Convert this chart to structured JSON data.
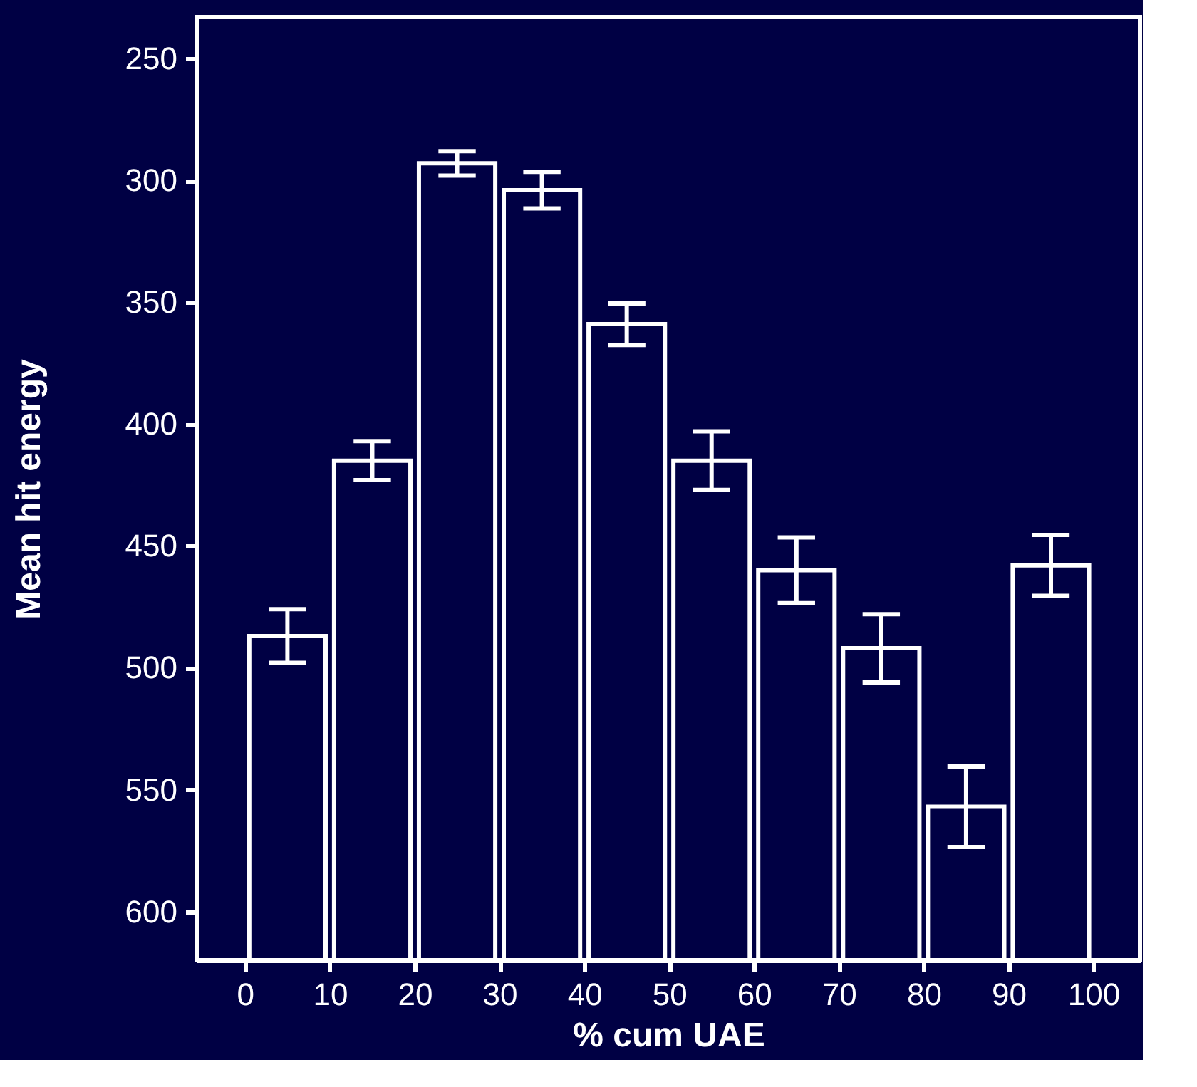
{
  "chart_data": {
    "type": "bar",
    "xlabel": "% cum UAE",
    "ylabel": "Mean hit energy",
    "x": [
      5,
      15,
      25,
      35,
      45,
      55,
      65,
      75,
      85,
      95
    ],
    "base": [
      620,
      620,
      620,
      620,
      620,
      620,
      620,
      620,
      620,
      620
    ],
    "values": [
      -133,
      -205,
      -327,
      -316,
      -261,
      -205,
      -160,
      -128,
      -63,
      -162
    ],
    "errors": [
      11,
      8,
      5,
      7.5,
      8.5,
      12,
      13.5,
      14,
      16.5,
      12.5
    ],
    "color": "#ffffff",
    "xlim": [
      -5.7,
      105.5
    ],
    "ylim": [
      620,
      233
    ],
    "xticks": [
      0,
      10,
      20,
      30,
      40,
      50,
      60,
      70,
      80,
      90,
      100
    ],
    "yticks": [
      250,
      300,
      350,
      400,
      450,
      500,
      550,
      600
    ],
    "grid": false
  }
}
